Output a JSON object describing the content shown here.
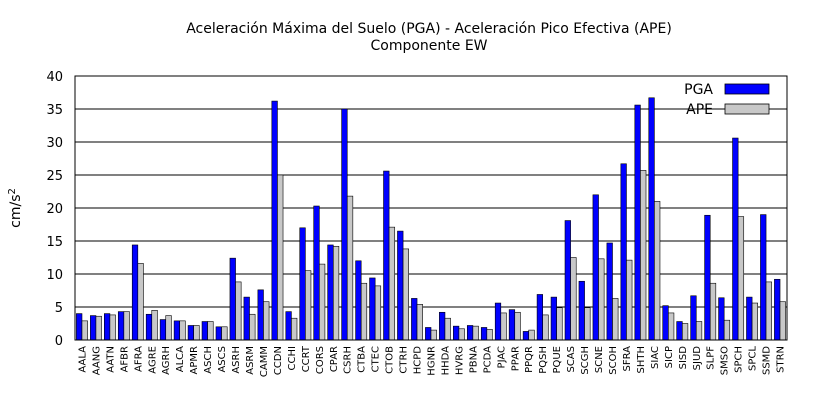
{
  "chart_data": {
    "type": "bar",
    "title": "Aceleración Máxima del Suelo (PGA) -  Aceleración Pico Efectiva (APE)",
    "subtitle": "Componente EW",
    "xlabel": "",
    "ylabel_base": "cm/s",
    "ylabel_sup": "2",
    "ylim": [
      0,
      40
    ],
    "yticks": [
      0,
      5,
      10,
      15,
      20,
      25,
      30,
      35,
      40
    ],
    "grid": true,
    "legend_position": "top-right",
    "categories": [
      "AALA",
      "AANG",
      "AATN",
      "AFBR",
      "AFRA",
      "AGRE",
      "AGRH",
      "ALCA",
      "APMR",
      "ASCH",
      "ASCS",
      "ASRH",
      "ASRM",
      "CAMM",
      "CCDN",
      "CCHI",
      "CCRT",
      "CORS",
      "CPAR",
      "CSRH",
      "CTBA",
      "CTEC",
      "CTOB",
      "CTRH",
      "HCPD",
      "HGNR",
      "HHDA",
      "HVRG",
      "PBNA",
      "PCDA",
      "PJAC",
      "PPAR",
      "PPQR",
      "PQSH",
      "PQUE",
      "SCAS",
      "SCGH",
      "SCNE",
      "SCOH",
      "SFRA",
      "SHTH",
      "SIAC",
      "SICP",
      "SISD",
      "SJUD",
      "SLPF",
      "SMSO",
      "SPCH",
      "SPCL",
      "SSMD",
      "STRN"
    ],
    "series": [
      {
        "name": "PGA",
        "color": "#0000ff",
        "values": [
          4.0,
          3.7,
          4.0,
          4.3,
          14.4,
          3.9,
          3.1,
          2.9,
          2.2,
          2.8,
          2.0,
          12.4,
          6.5,
          7.6,
          36.2,
          4.3,
          17.0,
          20.3,
          14.4,
          35.0,
          12.0,
          9.4,
          25.6,
          16.5,
          6.3,
          1.9,
          4.2,
          2.1,
          2.2,
          1.9,
          5.6,
          4.6,
          1.3,
          6.9,
          6.5,
          18.1,
          8.9,
          22.0,
          14.7,
          26.7,
          35.6,
          36.7,
          5.2,
          2.8,
          6.7,
          18.9,
          6.4,
          30.6,
          6.5,
          19.0,
          9.2
        ]
      },
      {
        "name": "APE",
        "color": "#c8c8c8",
        "values": [
          2.9,
          3.6,
          3.8,
          4.3,
          11.6,
          4.5,
          3.7,
          2.9,
          2.2,
          2.8,
          2.0,
          8.8,
          3.9,
          5.8,
          25.0,
          3.3,
          10.5,
          11.5,
          14.2,
          21.8,
          8.6,
          8.2,
          17.1,
          13.8,
          5.4,
          1.5,
          3.3,
          1.7,
          2.1,
          1.6,
          4.1,
          4.2,
          1.5,
          3.8,
          4.9,
          12.5,
          4.9,
          12.3,
          6.3,
          12.1,
          25.7,
          21.0,
          4.1,
          2.5,
          2.8,
          8.6,
          3.0,
          18.7,
          5.6,
          8.8,
          5.8
        ]
      }
    ]
  }
}
